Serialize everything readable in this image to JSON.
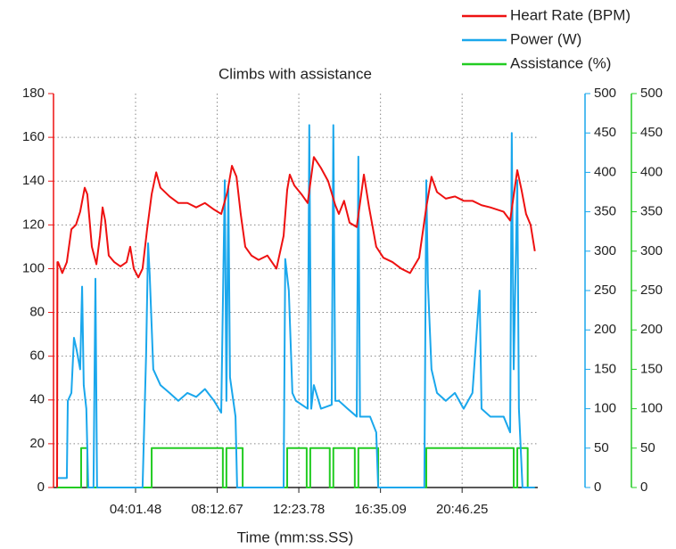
{
  "chart_data": {
    "type": "line",
    "title": "Climbs with assistance",
    "xlabel": "Time (mm:ss.SS)",
    "xlim": [
      -11,
      1479
    ],
    "xticks": [
      {
        "value": 241.48,
        "label": "04:01.48"
      },
      {
        "value": 492.67,
        "label": "08:12.67"
      },
      {
        "value": 743.78,
        "label": "12:23.78"
      },
      {
        "value": 995.09,
        "label": "16:35.09"
      },
      {
        "value": 1246.25,
        "label": "20:46.25"
      }
    ],
    "ylim": [
      0,
      180
    ],
    "yticks": [
      0,
      20,
      40,
      60,
      80,
      100,
      120,
      140,
      160,
      180
    ],
    "y2lim": [
      0,
      500
    ],
    "y2ticks": [
      0,
      50,
      100,
      150,
      200,
      250,
      300,
      350,
      400,
      450,
      500
    ],
    "y3lim": [
      0,
      500
    ],
    "y3ticks": [
      0,
      50,
      100,
      150,
      200,
      250,
      300,
      350,
      400,
      450,
      500
    ],
    "grid": true,
    "legend": "top-right",
    "series": [
      {
        "name": "Heart Rate (BPM)",
        "color": "#ee1111",
        "axis": "y",
        "x": [
          0,
          1,
          3,
          16,
          30,
          44,
          58,
          71,
          85,
          93,
          107,
          121,
          132,
          140,
          148,
          159,
          176,
          195,
          214,
          225,
          236,
          250,
          263,
          277,
          291,
          305,
          318,
          346,
          373,
          401,
          428,
          455,
          483,
          505,
          524,
          538,
          552,
          565,
          579,
          598,
          620,
          647,
          675,
          697,
          708,
          716,
          730,
          752,
          771,
          790,
          812,
          834,
          856,
          867,
          883,
          900,
          922,
          944,
          960,
          982,
          1004,
          1032,
          1059,
          1086,
          1114,
          1136,
          1152,
          1169,
          1196,
          1224,
          1251,
          1278,
          1306,
          1333,
          1374,
          1394,
          1416,
          1429,
          1443,
          1457,
          1470
        ],
        "values": [
          0,
          103,
          103,
          98,
          103,
          118,
          120,
          126,
          137,
          134,
          110,
          102,
          115,
          128,
          122,
          106,
          103,
          101,
          103,
          110,
          100,
          96,
          100,
          118,
          134,
          144,
          137,
          133,
          130,
          130,
          128,
          130,
          127,
          125,
          135,
          147,
          142,
          125,
          110,
          106,
          104,
          106,
          100,
          115,
          136,
          143,
          138,
          134,
          130,
          151,
          146,
          140,
          129,
          125,
          131,
          121,
          119,
          143,
          128,
          110,
          105,
          103,
          100,
          98,
          105,
          128,
          142,
          135,
          132,
          133,
          131,
          131,
          129,
          128,
          126,
          122,
          145,
          136,
          125,
          120,
          108
        ]
      },
      {
        "name": "Power (W)",
        "color": "#1aa7ec",
        "axis": "y2",
        "x": [
          0,
          16,
          30,
          33,
          44,
          52,
          60,
          71,
          77,
          82,
          90,
          96,
          112,
          118,
          123,
          263,
          274,
          280,
          285,
          296,
          318,
          346,
          373,
          401,
          428,
          455,
          483,
          505,
          516,
          521,
          527,
          532,
          549,
          554,
          697,
          702,
          713,
          724,
          735,
          771,
          776,
          782,
          790,
          812,
          845,
          850,
          856,
          867,
          894,
          922,
          927,
          932,
          963,
          982,
          988,
          1130,
          1136,
          1141,
          1152,
          1169,
          1196,
          1224,
          1251,
          1278,
          1300,
          1306,
          1333,
          1374,
          1394,
          1399,
          1405,
          1416,
          1421,
          1432,
          1470
        ],
        "values": [
          12,
          12,
          12,
          110,
          120,
          190,
          175,
          150,
          255,
          130,
          100,
          0,
          0,
          265,
          0,
          0,
          170,
          310,
          270,
          150,
          130,
          120,
          110,
          120,
          115,
          125,
          110,
          95,
          390,
          110,
          380,
          140,
          90,
          0,
          0,
          290,
          250,
          120,
          110,
          100,
          460,
          100,
          130,
          100,
          105,
          460,
          110,
          110,
          100,
          90,
          420,
          90,
          90,
          70,
          0,
          0,
          390,
          260,
          150,
          120,
          110,
          120,
          100,
          120,
          250,
          100,
          90,
          90,
          70,
          450,
          150,
          390,
          100,
          0,
          0
        ]
      },
      {
        "name": "Assistance (%)",
        "color": "#22cc22",
        "axis": "y3",
        "x": [
          0,
          74,
          74,
          93,
          93,
          291,
          291,
          510,
          510,
          521,
          521,
          571,
          571,
          708,
          708,
          768,
          768,
          779,
          779,
          839,
          839,
          850,
          850,
          916,
          916,
          927,
          927,
          988,
          988,
          1136,
          1136,
          1405,
          1405,
          1416,
          1416,
          1448,
          1448,
          1470
        ],
        "values": [
          0,
          0,
          50,
          50,
          0,
          0,
          50,
          50,
          0,
          0,
          50,
          50,
          0,
          0,
          50,
          50,
          0,
          0,
          50,
          50,
          0,
          0,
          50,
          50,
          0,
          0,
          50,
          50,
          0,
          0,
          50,
          50,
          0,
          0,
          50,
          50,
          0,
          0
        ]
      }
    ]
  }
}
